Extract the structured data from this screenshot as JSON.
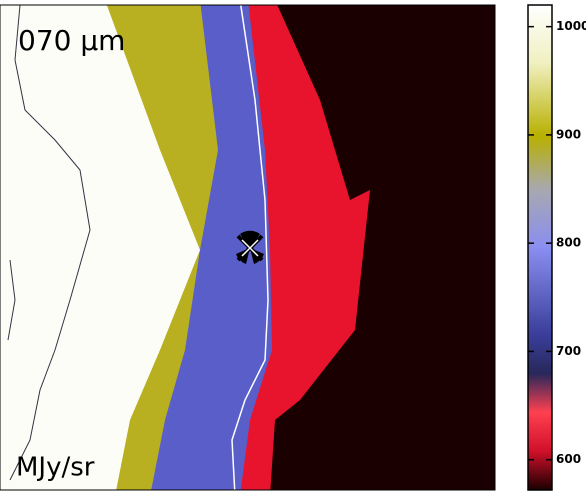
{
  "image": {
    "label": "070 μm",
    "unit": "MJy/sr"
  },
  "colorbar": {
    "range": [
      572,
      1020
    ],
    "ticks": [
      600,
      700,
      800,
      900,
      1000
    ]
  }
}
